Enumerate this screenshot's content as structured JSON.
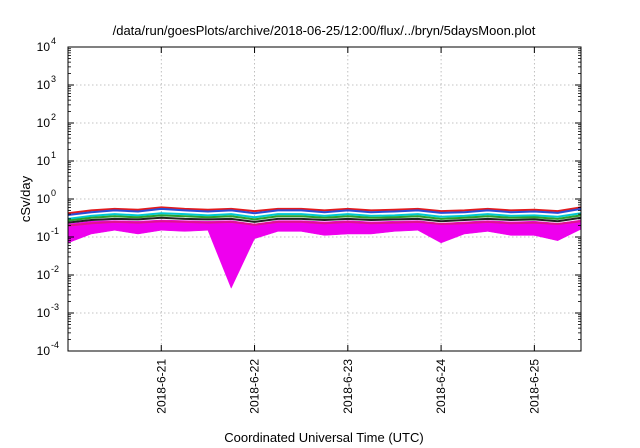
{
  "chart_data": {
    "type": "line",
    "title": "/data/run/goesPlots/archive/2018-06-25/12:00/flux/../bryn/5daysMoon.plot",
    "xlabel": "Coordinated Universal Time (UTC)",
    "ylabel": "cSv/day",
    "yscale": "log",
    "ylim": [
      0.0001,
      10000
    ],
    "xlim": [
      "2018-06-20T00:00",
      "2018-06-25T12:00"
    ],
    "grid": true,
    "x_ticks": [
      "2018-6-21",
      "2018-6-22",
      "2018-6-23",
      "2018-6-24",
      "2018-6-25"
    ],
    "y_ticks": [
      {
        "base": "10",
        "exp": "-4",
        "value": 0.0001
      },
      {
        "base": "10",
        "exp": "-3",
        "value": 0.001
      },
      {
        "base": "10",
        "exp": "-2",
        "value": 0.01
      },
      {
        "base": "10",
        "exp": "-1",
        "value": 0.1
      },
      {
        "base": "10",
        "exp": "0",
        "value": 1
      },
      {
        "base": "10",
        "exp": "1",
        "value": 10
      },
      {
        "base": "10",
        "exp": "2",
        "value": 100
      },
      {
        "base": "10",
        "exp": "3",
        "value": 1000
      },
      {
        "base": "10",
        "exp": "4",
        "value": 10000
      }
    ],
    "sample_days": [
      0.0,
      0.25,
      0.5,
      0.75,
      1.0,
      1.25,
      1.5,
      1.75,
      2.0,
      2.25,
      2.5,
      2.75,
      3.0,
      3.25,
      3.5,
      3.75,
      4.0,
      4.25,
      4.5,
      4.75,
      5.0,
      5.25,
      5.5
    ],
    "series": [
      {
        "color": "#e31a1c",
        "values": [
          0.42,
          0.5,
          0.55,
          0.52,
          0.6,
          0.55,
          0.52,
          0.55,
          0.48,
          0.55,
          0.55,
          0.5,
          0.55,
          0.5,
          0.52,
          0.55,
          0.48,
          0.5,
          0.55,
          0.5,
          0.52,
          0.48,
          0.6
        ]
      },
      {
        "color": "#2b4bd6",
        "values": [
          0.38,
          0.45,
          0.5,
          0.47,
          0.55,
          0.5,
          0.47,
          0.5,
          0.42,
          0.5,
          0.5,
          0.45,
          0.5,
          0.45,
          0.47,
          0.5,
          0.43,
          0.45,
          0.5,
          0.45,
          0.47,
          0.43,
          0.55
        ]
      },
      {
        "color": "#00c8d2",
        "values": [
          0.3,
          0.36,
          0.4,
          0.37,
          0.42,
          0.4,
          0.37,
          0.4,
          0.33,
          0.4,
          0.4,
          0.36,
          0.4,
          0.36,
          0.37,
          0.4,
          0.34,
          0.36,
          0.4,
          0.36,
          0.37,
          0.34,
          0.42
        ]
      },
      {
        "color": "#2ca02c",
        "values": [
          0.27,
          0.32,
          0.35,
          0.33,
          0.37,
          0.35,
          0.33,
          0.35,
          0.29,
          0.35,
          0.35,
          0.32,
          0.35,
          0.32,
          0.33,
          0.35,
          0.3,
          0.32,
          0.35,
          0.32,
          0.33,
          0.3,
          0.37
        ]
      },
      {
        "color": "#222222",
        "values": [
          0.24,
          0.28,
          0.3,
          0.29,
          0.32,
          0.3,
          0.29,
          0.3,
          0.25,
          0.3,
          0.3,
          0.28,
          0.3,
          0.28,
          0.29,
          0.3,
          0.26,
          0.28,
          0.3,
          0.28,
          0.29,
          0.26,
          0.32
        ]
      },
      {
        "color": "#e0148c",
        "values": [
          0.2,
          0.23,
          0.25,
          0.24,
          0.26,
          0.25,
          0.24,
          0.25,
          0.21,
          0.25,
          0.25,
          0.23,
          0.25,
          0.23,
          0.24,
          0.25,
          0.22,
          0.23,
          0.25,
          0.23,
          0.24,
          0.22,
          0.26
        ]
      }
    ],
    "magenta_band": {
      "color": "#ee00ee",
      "upper": [
        0.22,
        0.26,
        0.27,
        0.26,
        0.28,
        0.27,
        0.26,
        0.27,
        0.22,
        0.27,
        0.27,
        0.25,
        0.27,
        0.25,
        0.26,
        0.27,
        0.23,
        0.25,
        0.27,
        0.25,
        0.26,
        0.23,
        0.28
      ],
      "lower": [
        0.07,
        0.12,
        0.15,
        0.12,
        0.15,
        0.14,
        0.15,
        0.0045,
        0.09,
        0.14,
        0.14,
        0.11,
        0.12,
        0.12,
        0.14,
        0.15,
        0.07,
        0.12,
        0.14,
        0.11,
        0.11,
        0.08,
        0.16
      ]
    }
  }
}
